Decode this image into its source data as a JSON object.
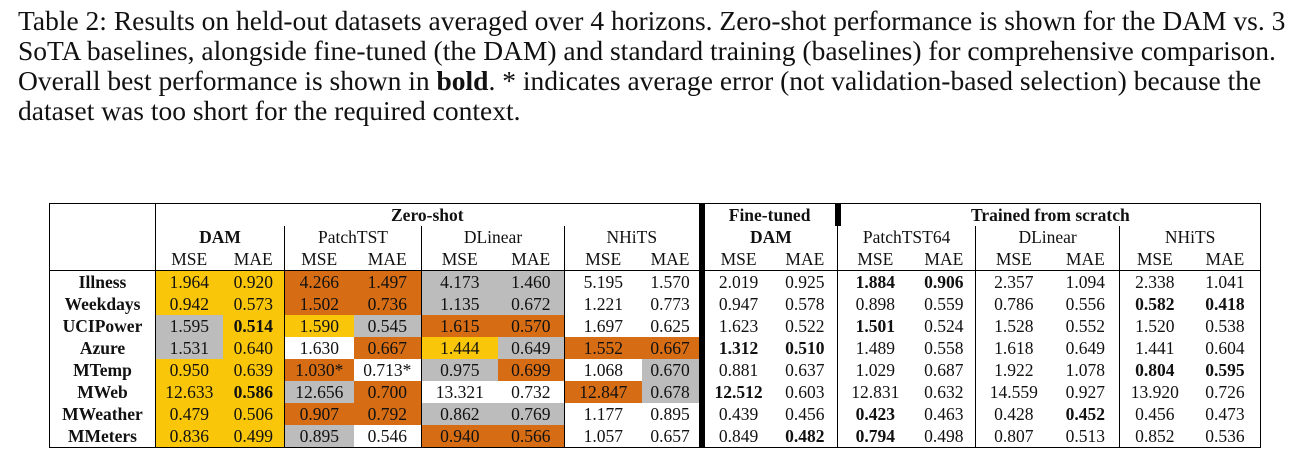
{
  "caption": {
    "pre": "Table 2: Results on held-out datasets averaged over 4 horizons. Zero-shot performance is shown for the DAM vs. 3 SoTA baselines, alongside fine-tuned (the DAM) and standard training (baselines) for comprehensive comparison. Overall best performance is shown in ",
    "bold": "bold",
    "post": ". * indicates average error (not validation-based selection) because the dataset was too short for the required context."
  },
  "header": {
    "zero_shot": "Zero-shot",
    "fine_tuned": "Fine-tuned",
    "trained_from_scratch": "Trained from scratch",
    "models": [
      "DAM",
      "PatchTST",
      "DLinear",
      "NHiTS",
      "DAM",
      "PatchTST64",
      "DLinear",
      "NHiTS"
    ],
    "metrics": [
      "MSE",
      "MAE",
      "MSE",
      "MAE",
      "MSE",
      "MAE",
      "MSE",
      "MAE",
      "MSE",
      "MAE",
      "MSE",
      "MAE",
      "MSE",
      "MAE",
      "MSE",
      "MAE"
    ]
  },
  "rows": [
    {
      "name": "Illness",
      "cells": [
        {
          "v": "1.964",
          "c": "y"
        },
        {
          "v": "0.920",
          "c": "y"
        },
        {
          "v": "4.266",
          "c": "o"
        },
        {
          "v": "1.497",
          "c": "o"
        },
        {
          "v": "4.173",
          "c": "s"
        },
        {
          "v": "1.460",
          "c": "s"
        },
        {
          "v": "5.195"
        },
        {
          "v": "1.570"
        },
        {
          "v": "2.019"
        },
        {
          "v": "0.925"
        },
        {
          "v": "1.884",
          "b": true
        },
        {
          "v": "0.906",
          "b": true
        },
        {
          "v": "2.357"
        },
        {
          "v": "1.094"
        },
        {
          "v": "2.338"
        },
        {
          "v": "1.041"
        }
      ]
    },
    {
      "name": "Weekdays",
      "cells": [
        {
          "v": "0.942",
          "c": "y"
        },
        {
          "v": "0.573",
          "c": "y"
        },
        {
          "v": "1.502",
          "c": "o"
        },
        {
          "v": "0.736",
          "c": "o"
        },
        {
          "v": "1.135",
          "c": "s"
        },
        {
          "v": "0.672",
          "c": "s"
        },
        {
          "v": "1.221"
        },
        {
          "v": "0.773"
        },
        {
          "v": "0.947"
        },
        {
          "v": "0.578"
        },
        {
          "v": "0.898"
        },
        {
          "v": "0.559"
        },
        {
          "v": "0.786"
        },
        {
          "v": "0.556"
        },
        {
          "v": "0.582",
          "b": true
        },
        {
          "v": "0.418",
          "b": true
        }
      ]
    },
    {
      "name": "UCIPower",
      "cells": [
        {
          "v": "1.595",
          "c": "s"
        },
        {
          "v": "0.514",
          "c": "y",
          "b": true
        },
        {
          "v": "1.590",
          "c": "y"
        },
        {
          "v": "0.545",
          "c": "s"
        },
        {
          "v": "1.615",
          "c": "o"
        },
        {
          "v": "0.570",
          "c": "o"
        },
        {
          "v": "1.697"
        },
        {
          "v": "0.625"
        },
        {
          "v": "1.623"
        },
        {
          "v": "0.522"
        },
        {
          "v": "1.501",
          "b": true
        },
        {
          "v": "0.524"
        },
        {
          "v": "1.528"
        },
        {
          "v": "0.552"
        },
        {
          "v": "1.520"
        },
        {
          "v": "0.538"
        }
      ]
    },
    {
      "name": "Azure",
      "cells": [
        {
          "v": "1.531",
          "c": "s"
        },
        {
          "v": "0.640",
          "c": "y"
        },
        {
          "v": "1.630"
        },
        {
          "v": "0.667",
          "c": "o"
        },
        {
          "v": "1.444",
          "c": "y"
        },
        {
          "v": "0.649",
          "c": "s"
        },
        {
          "v": "1.552",
          "c": "o"
        },
        {
          "v": "0.667",
          "c": "o"
        },
        {
          "v": "1.312",
          "b": true
        },
        {
          "v": "0.510",
          "b": true
        },
        {
          "v": "1.489"
        },
        {
          "v": "0.558"
        },
        {
          "v": "1.618"
        },
        {
          "v": "0.649"
        },
        {
          "v": "1.441"
        },
        {
          "v": "0.604"
        }
      ]
    },
    {
      "name": "MTemp",
      "cells": [
        {
          "v": "0.950",
          "c": "y"
        },
        {
          "v": "0.639",
          "c": "y"
        },
        {
          "v": "1.030*",
          "c": "o"
        },
        {
          "v": "0.713*"
        },
        {
          "v": "0.975",
          "c": "s"
        },
        {
          "v": "0.699",
          "c": "o"
        },
        {
          "v": "1.068"
        },
        {
          "v": "0.670",
          "c": "s"
        },
        {
          "v": "0.881"
        },
        {
          "v": "0.637"
        },
        {
          "v": "1.029"
        },
        {
          "v": "0.687"
        },
        {
          "v": "1.922"
        },
        {
          "v": "1.078"
        },
        {
          "v": "0.804",
          "b": true
        },
        {
          "v": "0.595",
          "b": true
        }
      ]
    },
    {
      "name": "MWeb",
      "cells": [
        {
          "v": "12.633",
          "c": "y"
        },
        {
          "v": "0.586",
          "c": "y",
          "b": true
        },
        {
          "v": "12.656",
          "c": "s"
        },
        {
          "v": "0.700",
          "c": "o"
        },
        {
          "v": "13.321"
        },
        {
          "v": "0.732"
        },
        {
          "v": "12.847",
          "c": "o"
        },
        {
          "v": "0.678",
          "c": "s"
        },
        {
          "v": "12.512",
          "b": true
        },
        {
          "v": "0.603"
        },
        {
          "v": "12.831"
        },
        {
          "v": "0.632"
        },
        {
          "v": "14.559"
        },
        {
          "v": "0.927"
        },
        {
          "v": "13.920"
        },
        {
          "v": "0.726"
        }
      ]
    },
    {
      "name": "MWeather",
      "cells": [
        {
          "v": "0.479",
          "c": "y"
        },
        {
          "v": "0.506",
          "c": "y"
        },
        {
          "v": "0.907",
          "c": "o"
        },
        {
          "v": "0.792",
          "c": "o"
        },
        {
          "v": "0.862",
          "c": "s"
        },
        {
          "v": "0.769",
          "c": "s"
        },
        {
          "v": "1.177"
        },
        {
          "v": "0.895"
        },
        {
          "v": "0.439"
        },
        {
          "v": "0.456"
        },
        {
          "v": "0.423",
          "b": true
        },
        {
          "v": "0.463"
        },
        {
          "v": "0.428"
        },
        {
          "v": "0.452",
          "b": true
        },
        {
          "v": "0.456"
        },
        {
          "v": "0.473"
        }
      ]
    },
    {
      "name": "MMeters",
      "cells": [
        {
          "v": "0.836",
          "c": "y"
        },
        {
          "v": "0.499",
          "c": "y"
        },
        {
          "v": "0.895",
          "c": "s"
        },
        {
          "v": "0.546"
        },
        {
          "v": "0.940",
          "c": "o"
        },
        {
          "v": "0.566",
          "c": "o"
        },
        {
          "v": "1.057"
        },
        {
          "v": "0.657"
        },
        {
          "v": "0.849"
        },
        {
          "v": "0.482",
          "b": true
        },
        {
          "v": "0.794",
          "b": true
        },
        {
          "v": "0.498"
        },
        {
          "v": "0.807"
        },
        {
          "v": "0.513"
        },
        {
          "v": "0.852"
        },
        {
          "v": "0.536"
        }
      ]
    }
  ],
  "colors": {
    "first": "#f9c60a",
    "second": "#d66d14",
    "third": "#bcbcbc"
  }
}
